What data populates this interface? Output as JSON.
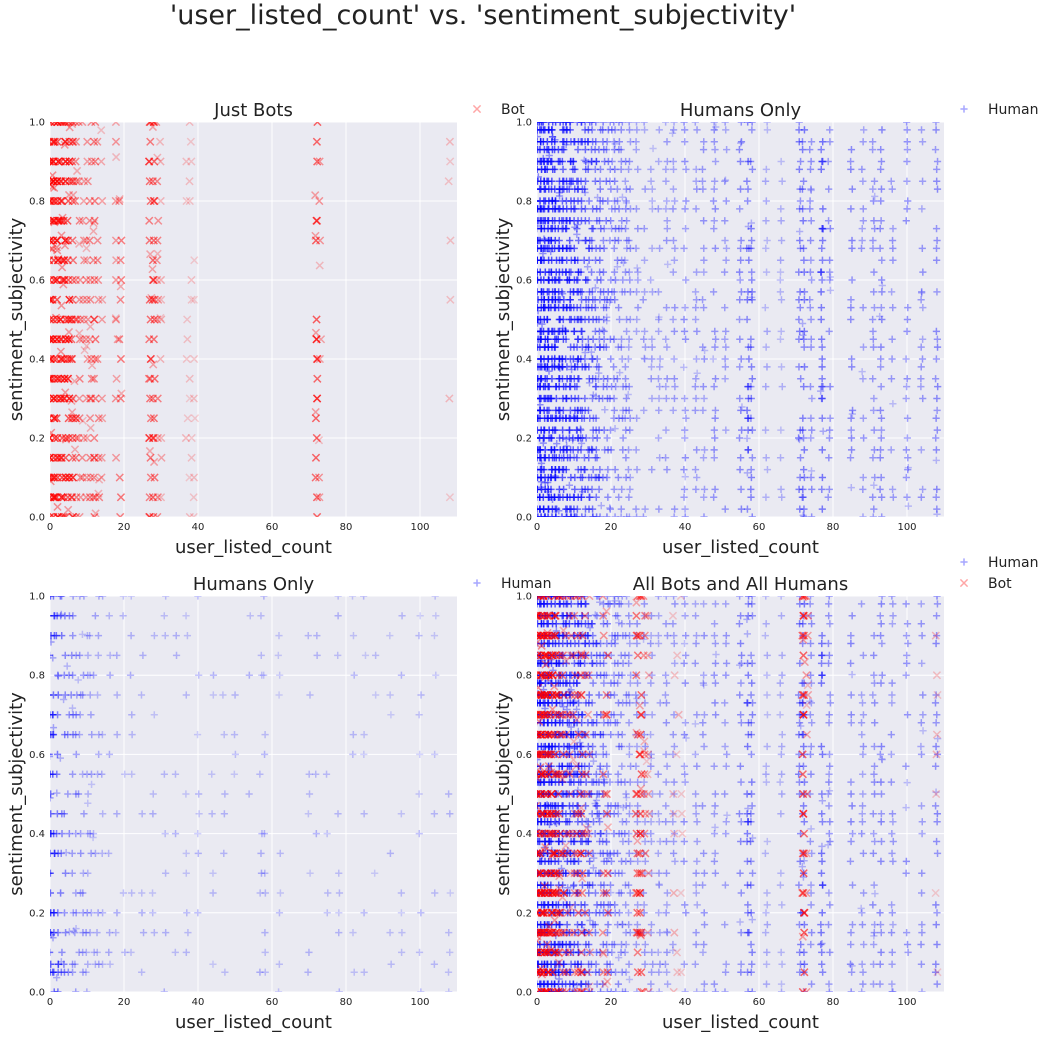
{
  "figure": {
    "title": "'user_listed_count' vs. 'sentiment_subjectivity'"
  },
  "colors": {
    "bot": "#ff0000",
    "human": "#0000ff",
    "axes_background": "#eaeaf2",
    "grid": "#ffffff",
    "text": "#222222"
  },
  "chart_data": [
    {
      "type": "scatter",
      "title": "Just Bots",
      "xlabel": "user_listed_count",
      "ylabel": "sentiment_subjectivity",
      "xlim": [
        0,
        110
      ],
      "ylim": [
        0,
        1
      ],
      "xticks": [
        "0",
        "20",
        "40",
        "60",
        "80",
        "100"
      ],
      "yticks": [
        "0.0",
        "0.2",
        "0.4",
        "0.6",
        "0.8",
        "1.0"
      ],
      "grid": true,
      "legend_placement": "outside-top-right",
      "series": [
        {
          "name": "Bot",
          "marker": "x",
          "color": "#ff0000",
          "columns_x": [
            0,
            1,
            2,
            3,
            4,
            5,
            6,
            7,
            8,
            9,
            10,
            11,
            12,
            13,
            14,
            18,
            19,
            27,
            28,
            29,
            30,
            37,
            38,
            39,
            72,
            73,
            108
          ],
          "columns_weight": [
            1.0,
            1.0,
            0.95,
            0.9,
            0.85,
            0.8,
            0.7,
            0.55,
            0.45,
            0.35,
            0.4,
            0.5,
            0.55,
            0.45,
            0.3,
            0.35,
            0.55,
            0.6,
            0.7,
            0.45,
            0.2,
            0.08,
            0.06,
            0.05,
            0.75,
            0.35,
            0.06
          ],
          "y_levels": [
            0.0,
            0.05,
            0.1,
            0.15,
            0.2,
            0.25,
            0.3,
            0.35,
            0.4,
            0.45,
            0.5,
            0.55,
            0.6,
            0.65,
            0.7,
            0.75,
            0.8,
            0.85,
            0.9,
            0.95,
            1.0
          ]
        }
      ]
    },
    {
      "type": "scatter",
      "title": "Humans Only",
      "xlabel": "user_listed_count",
      "ylabel": "sentiment_subjectivity",
      "xlim": [
        0,
        110
      ],
      "ylim": [
        0,
        1
      ],
      "xticks": [
        "0",
        "20",
        "40",
        "60",
        "80",
        "100"
      ],
      "yticks": [
        "0.0",
        "0.2",
        "0.4",
        "0.6",
        "0.8",
        "1.0"
      ],
      "grid": true,
      "legend_placement": "outside-top-right",
      "series": [
        {
          "name": "Human",
          "marker": "+",
          "color": "#0000ff",
          "columns_x": [
            0,
            1,
            2,
            3,
            4,
            5,
            6,
            7,
            8,
            9,
            10,
            11,
            12,
            13,
            14,
            15,
            16,
            17,
            18,
            19,
            20,
            21,
            22,
            23,
            24,
            25,
            27,
            29,
            31,
            33,
            35,
            37,
            40,
            43,
            45,
            48,
            51,
            55,
            57,
            58,
            62,
            66,
            71,
            72,
            74,
            77,
            79,
            85,
            88,
            91,
            93,
            96,
            100,
            104,
            108
          ],
          "columns_weight": [
            1.0,
            1.0,
            0.95,
            0.92,
            0.9,
            0.88,
            0.85,
            0.8,
            0.78,
            0.75,
            0.72,
            0.7,
            0.66,
            0.62,
            0.6,
            0.55,
            0.52,
            0.5,
            0.46,
            0.44,
            0.42,
            0.4,
            0.38,
            0.35,
            0.32,
            0.3,
            0.3,
            0.28,
            0.25,
            0.25,
            0.28,
            0.3,
            0.35,
            0.28,
            0.3,
            0.35,
            0.3,
            0.4,
            0.5,
            0.45,
            0.15,
            0.15,
            0.45,
            0.5,
            0.35,
            0.55,
            0.35,
            0.4,
            0.3,
            0.35,
            0.4,
            0.3,
            0.35,
            0.3,
            0.4
          ],
          "y_levels": [
            0.0,
            0.02,
            0.05,
            0.07,
            0.1,
            0.12,
            0.15,
            0.17,
            0.2,
            0.22,
            0.25,
            0.27,
            0.3,
            0.33,
            0.35,
            0.38,
            0.4,
            0.43,
            0.45,
            0.47,
            0.5,
            0.53,
            0.55,
            0.57,
            0.6,
            0.62,
            0.65,
            0.68,
            0.7,
            0.73,
            0.75,
            0.78,
            0.8,
            0.83,
            0.85,
            0.88,
            0.9,
            0.93,
            0.95,
            0.98,
            1.0
          ]
        }
      ]
    },
    {
      "type": "scatter",
      "title": "Humans Only",
      "xlabel": "user_listed_count",
      "ylabel": "sentiment_subjectivity",
      "xlim": [
        0,
        110
      ],
      "ylim": [
        0,
        1
      ],
      "xticks": [
        "0",
        "20",
        "40",
        "60",
        "80",
        "100"
      ],
      "yticks": [
        "0.0",
        "0.2",
        "0.4",
        "0.6",
        "0.8",
        "1.0"
      ],
      "grid": true,
      "legend_placement": "outside-top-right",
      "series": [
        {
          "name": "Human",
          "marker": "+",
          "color": "#0000ff",
          "columns_x": [
            0,
            1,
            2,
            3,
            4,
            5,
            6,
            7,
            8,
            9,
            10,
            11,
            12,
            13,
            14,
            16,
            18,
            20,
            22,
            25,
            28,
            31,
            34,
            37,
            40,
            44,
            47,
            50,
            54,
            57,
            58,
            62,
            70,
            72,
            75,
            78,
            82,
            85,
            88,
            92,
            95,
            100,
            104,
            108
          ],
          "columns_weight": [
            0.75,
            0.65,
            0.55,
            0.5,
            0.45,
            0.4,
            0.35,
            0.3,
            0.28,
            0.25,
            0.22,
            0.2,
            0.18,
            0.16,
            0.15,
            0.14,
            0.13,
            0.12,
            0.11,
            0.1,
            0.1,
            0.09,
            0.09,
            0.08,
            0.08,
            0.07,
            0.07,
            0.07,
            0.08,
            0.12,
            0.1,
            0.03,
            0.07,
            0.08,
            0.06,
            0.06,
            0.05,
            0.06,
            0.05,
            0.05,
            0.05,
            0.05,
            0.05,
            0.05
          ],
          "y_levels": [
            0.0,
            0.05,
            0.07,
            0.1,
            0.15,
            0.2,
            0.25,
            0.3,
            0.35,
            0.4,
            0.45,
            0.5,
            0.55,
            0.6,
            0.65,
            0.7,
            0.75,
            0.8,
            0.85,
            0.9,
            0.95,
            1.0
          ]
        }
      ]
    },
    {
      "type": "scatter",
      "title": "All Bots and All Humans",
      "xlabel": "user_listed_count",
      "ylabel": "sentiment_subjectivity",
      "xlim": [
        0,
        110
      ],
      "ylim": [
        0,
        1
      ],
      "xticks": [
        "0",
        "20",
        "40",
        "60",
        "80",
        "100"
      ],
      "yticks": [
        "0.0",
        "0.2",
        "0.4",
        "0.6",
        "0.8",
        "1.0"
      ],
      "grid": true,
      "legend_placement": "outside-top-right",
      "series": [
        {
          "name": "Human",
          "marker": "+",
          "color": "#0000ff",
          "columns_x": [
            0,
            1,
            2,
            3,
            4,
            5,
            6,
            7,
            8,
            9,
            10,
            11,
            12,
            13,
            14,
            15,
            16,
            17,
            18,
            19,
            20,
            21,
            22,
            23,
            24,
            25,
            27,
            29,
            31,
            33,
            35,
            37,
            40,
            43,
            45,
            48,
            51,
            55,
            57,
            58,
            62,
            66,
            71,
            72,
            74,
            77,
            79,
            85,
            88,
            91,
            93,
            96,
            100,
            104,
            108
          ],
          "columns_weight": [
            1.0,
            1.0,
            0.95,
            0.92,
            0.9,
            0.88,
            0.85,
            0.8,
            0.78,
            0.75,
            0.72,
            0.7,
            0.66,
            0.62,
            0.6,
            0.55,
            0.52,
            0.5,
            0.46,
            0.44,
            0.42,
            0.4,
            0.38,
            0.35,
            0.32,
            0.3,
            0.3,
            0.28,
            0.25,
            0.25,
            0.28,
            0.3,
            0.35,
            0.28,
            0.3,
            0.35,
            0.3,
            0.4,
            0.5,
            0.45,
            0.15,
            0.15,
            0.45,
            0.5,
            0.35,
            0.55,
            0.35,
            0.4,
            0.3,
            0.35,
            0.4,
            0.3,
            0.35,
            0.3,
            0.4
          ],
          "y_levels": [
            0.0,
            0.02,
            0.05,
            0.07,
            0.1,
            0.12,
            0.15,
            0.17,
            0.2,
            0.22,
            0.25,
            0.27,
            0.3,
            0.33,
            0.35,
            0.38,
            0.4,
            0.43,
            0.45,
            0.47,
            0.5,
            0.53,
            0.55,
            0.57,
            0.6,
            0.62,
            0.65,
            0.68,
            0.7,
            0.73,
            0.75,
            0.78,
            0.8,
            0.83,
            0.85,
            0.88,
            0.9,
            0.93,
            0.95,
            0.98,
            1.0
          ]
        },
        {
          "name": "Bot",
          "marker": "x",
          "color": "#ff0000",
          "columns_x": [
            0,
            1,
            2,
            3,
            4,
            5,
            6,
            7,
            8,
            9,
            10,
            11,
            12,
            13,
            14,
            18,
            19,
            27,
            28,
            29,
            30,
            37,
            38,
            39,
            72,
            73,
            108
          ],
          "columns_weight": [
            1.0,
            1.0,
            0.95,
            0.9,
            0.85,
            0.8,
            0.7,
            0.55,
            0.45,
            0.35,
            0.4,
            0.5,
            0.55,
            0.45,
            0.3,
            0.35,
            0.55,
            0.6,
            0.7,
            0.45,
            0.2,
            0.08,
            0.06,
            0.05,
            0.75,
            0.35,
            0.06
          ],
          "y_levels": [
            0.0,
            0.05,
            0.1,
            0.15,
            0.2,
            0.25,
            0.3,
            0.35,
            0.4,
            0.45,
            0.5,
            0.55,
            0.6,
            0.65,
            0.7,
            0.75,
            0.8,
            0.85,
            0.9,
            0.95,
            1.0
          ]
        }
      ]
    }
  ]
}
